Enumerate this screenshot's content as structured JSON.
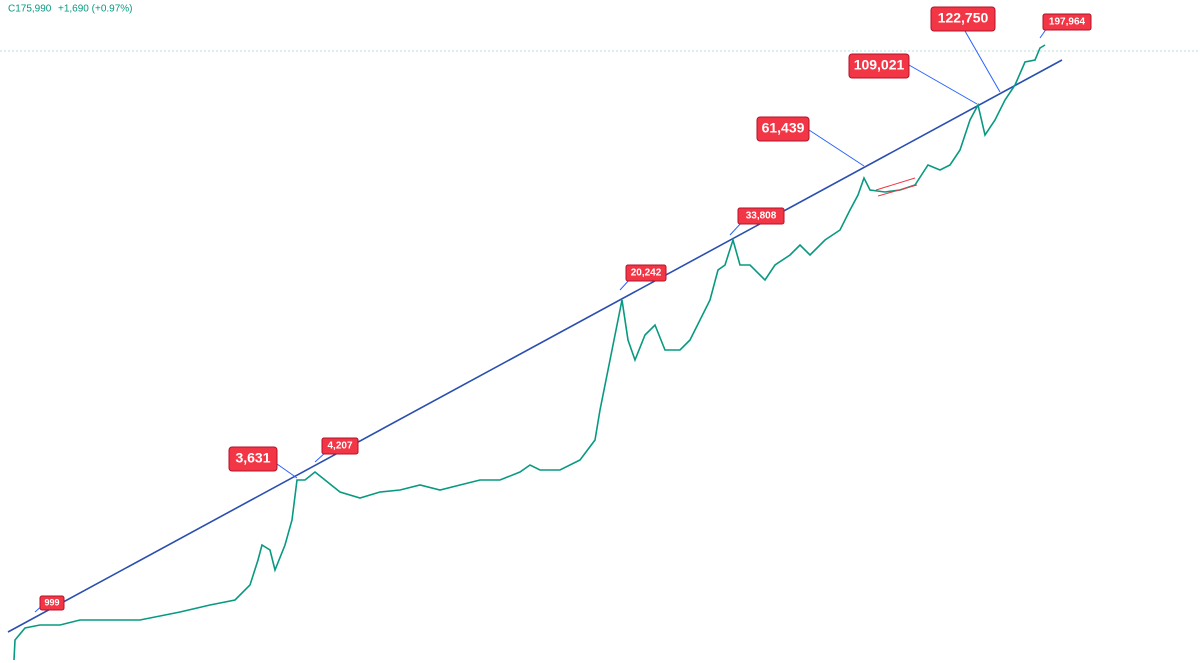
{
  "header": {
    "close": "C175,990",
    "change": "+1,690 (+0.97%)"
  },
  "annotations": [
    "999",
    "3,631",
    "4,207",
    "20,242",
    "33,808",
    "61,439",
    "109,021",
    "122,750",
    "197,964"
  ]
}
